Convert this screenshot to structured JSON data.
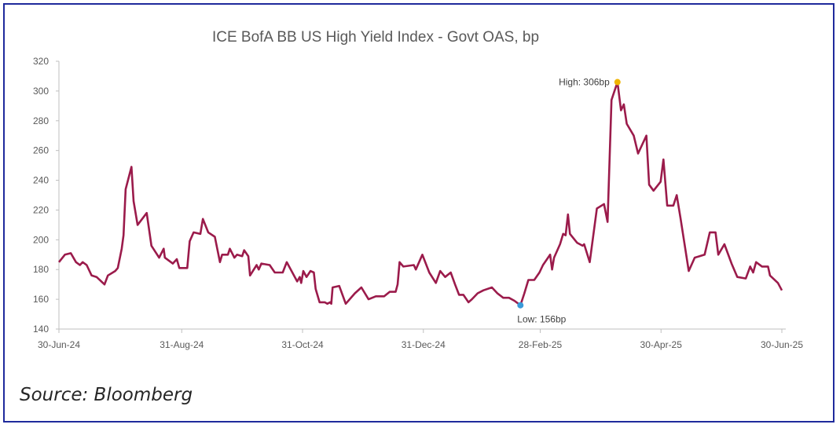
{
  "chart_data": {
    "type": "line",
    "title": "ICE BofA BB US High Yield Index - Govt OAS, bp",
    "xlabel": "",
    "ylabel": "",
    "ylim": [
      140,
      320
    ],
    "yticks": [
      140,
      160,
      180,
      200,
      220,
      240,
      260,
      280,
      300,
      320
    ],
    "x_unit": "days since 30-Jun-24",
    "xlim": [
      0,
      365
    ],
    "xticks": [
      {
        "day": 0,
        "label": "30-Jun-24"
      },
      {
        "day": 62,
        "label": "31-Aug-24"
      },
      {
        "day": 123,
        "label": "31-Oct-24"
      },
      {
        "day": 184,
        "label": "31-Dec-24"
      },
      {
        "day": 243,
        "label": "28-Feb-25"
      },
      {
        "day": 304,
        "label": "30-Apr-25"
      },
      {
        "day": 365,
        "label": "30-Jun-25"
      }
    ],
    "grid": false,
    "series": [
      {
        "name": "OAS",
        "color": "#9b1b4b",
        "x": [
          0,
          3,
          6,
          8.6,
          10.6,
          12,
          14,
          16.5,
          19,
          23,
          24.7,
          28.4,
          29.7,
          31.7,
          32.6,
          33.7,
          36.6,
          37.7,
          39.7,
          44.3,
          46.7,
          50.6,
          52.9,
          53.5,
          57.5,
          59.5,
          60.8,
          64.8,
          66,
          68,
          71.4,
          72.7,
          75.4,
          78.7,
          81.3,
          82.4,
          85.3,
          86.3,
          88.6,
          89.9,
          92.5,
          93.5,
          95.6,
          96.5,
          99.8,
          100.9,
          102.2,
          106.4,
          109,
          113,
          115,
          120.3,
          121.6,
          122.3,
          123.4,
          125,
          127,
          128.7,
          129.6,
          131.6,
          134.2,
          135.5,
          136.9,
          137.5,
          138.2,
          141.5,
          144.8,
          149.4,
          152.7,
          156.3,
          160,
          164.2,
          167,
          170,
          171,
          172,
          173.9,
          179.2,
          180.2,
          183.5,
          187,
          190.3,
          192.5,
          195,
          197.8,
          200,
          202,
          204.2,
          206.8,
          208.5,
          211.4,
          214.3,
          218.6,
          221.4,
          224.3,
          227.2,
          230,
          233,
          235,
          237,
          240,
          242.6,
          244.4,
          248,
          249,
          250,
          253,
          254.6,
          255.8,
          257,
          258,
          261.6,
          264.4,
          265.2,
          268,
          271.6,
          275.2,
          277,
          279,
          282,
          283.8,
          285.2,
          286.7,
          290.2,
          292.4,
          296.6,
          298,
          300.2,
          303.8,
          305.2,
          307.1,
          310.2,
          311.9,
          313.8,
          318,
          321,
          326,
          328.6,
          331.5,
          332.9,
          336,
          339.6,
          342.5,
          346.8,
          349,
          350.5,
          352,
          355,
          358,
          359,
          363,
          365
        ],
        "values": [
          185,
          190,
          191,
          185,
          183,
          185,
          183,
          176,
          175,
          170,
          176,
          179,
          181,
          194,
          203,
          234,
          249,
          226,
          210,
          218,
          196,
          188,
          194,
          188,
          184,
          187,
          181,
          181,
          199,
          205,
          204,
          214,
          205,
          202,
          185,
          190,
          190,
          194,
          188,
          190,
          189,
          193,
          189,
          176,
          183,
          180,
          184,
          183,
          178,
          178,
          185,
          172,
          175,
          171,
          179,
          175,
          179,
          178,
          167,
          158,
          158,
          157,
          158,
          157,
          168,
          169,
          157,
          164,
          168,
          160,
          162,
          162,
          165,
          165,
          170,
          185,
          182,
          183,
          180,
          190,
          178,
          171,
          179,
          175,
          178,
          170,
          163,
          163,
          158,
          160,
          164,
          166,
          168,
          164,
          161,
          161,
          159,
          156,
          164,
          173,
          173,
          178,
          183,
          190,
          180,
          188,
          197,
          204,
          203,
          217,
          204,
          198,
          196,
          197,
          185,
          221,
          224,
          212,
          294,
          306,
          287,
          291,
          278,
          270,
          258,
          270,
          237,
          233,
          239,
          254,
          223,
          223,
          230,
          215,
          179,
          188,
          190,
          205,
          205,
          190,
          197,
          184,
          175,
          174,
          182,
          178,
          185,
          182,
          182,
          176,
          171,
          166
        ]
      }
    ],
    "annotations": [
      {
        "label": "High: 306bp",
        "day": 282,
        "value": 306,
        "color": "#f0b400"
      },
      {
        "label": "Low: 156bp",
        "day": 233,
        "value": 156,
        "color": "#3a9ad9"
      }
    ],
    "legend": "none"
  },
  "source": "Source: Bloomberg"
}
